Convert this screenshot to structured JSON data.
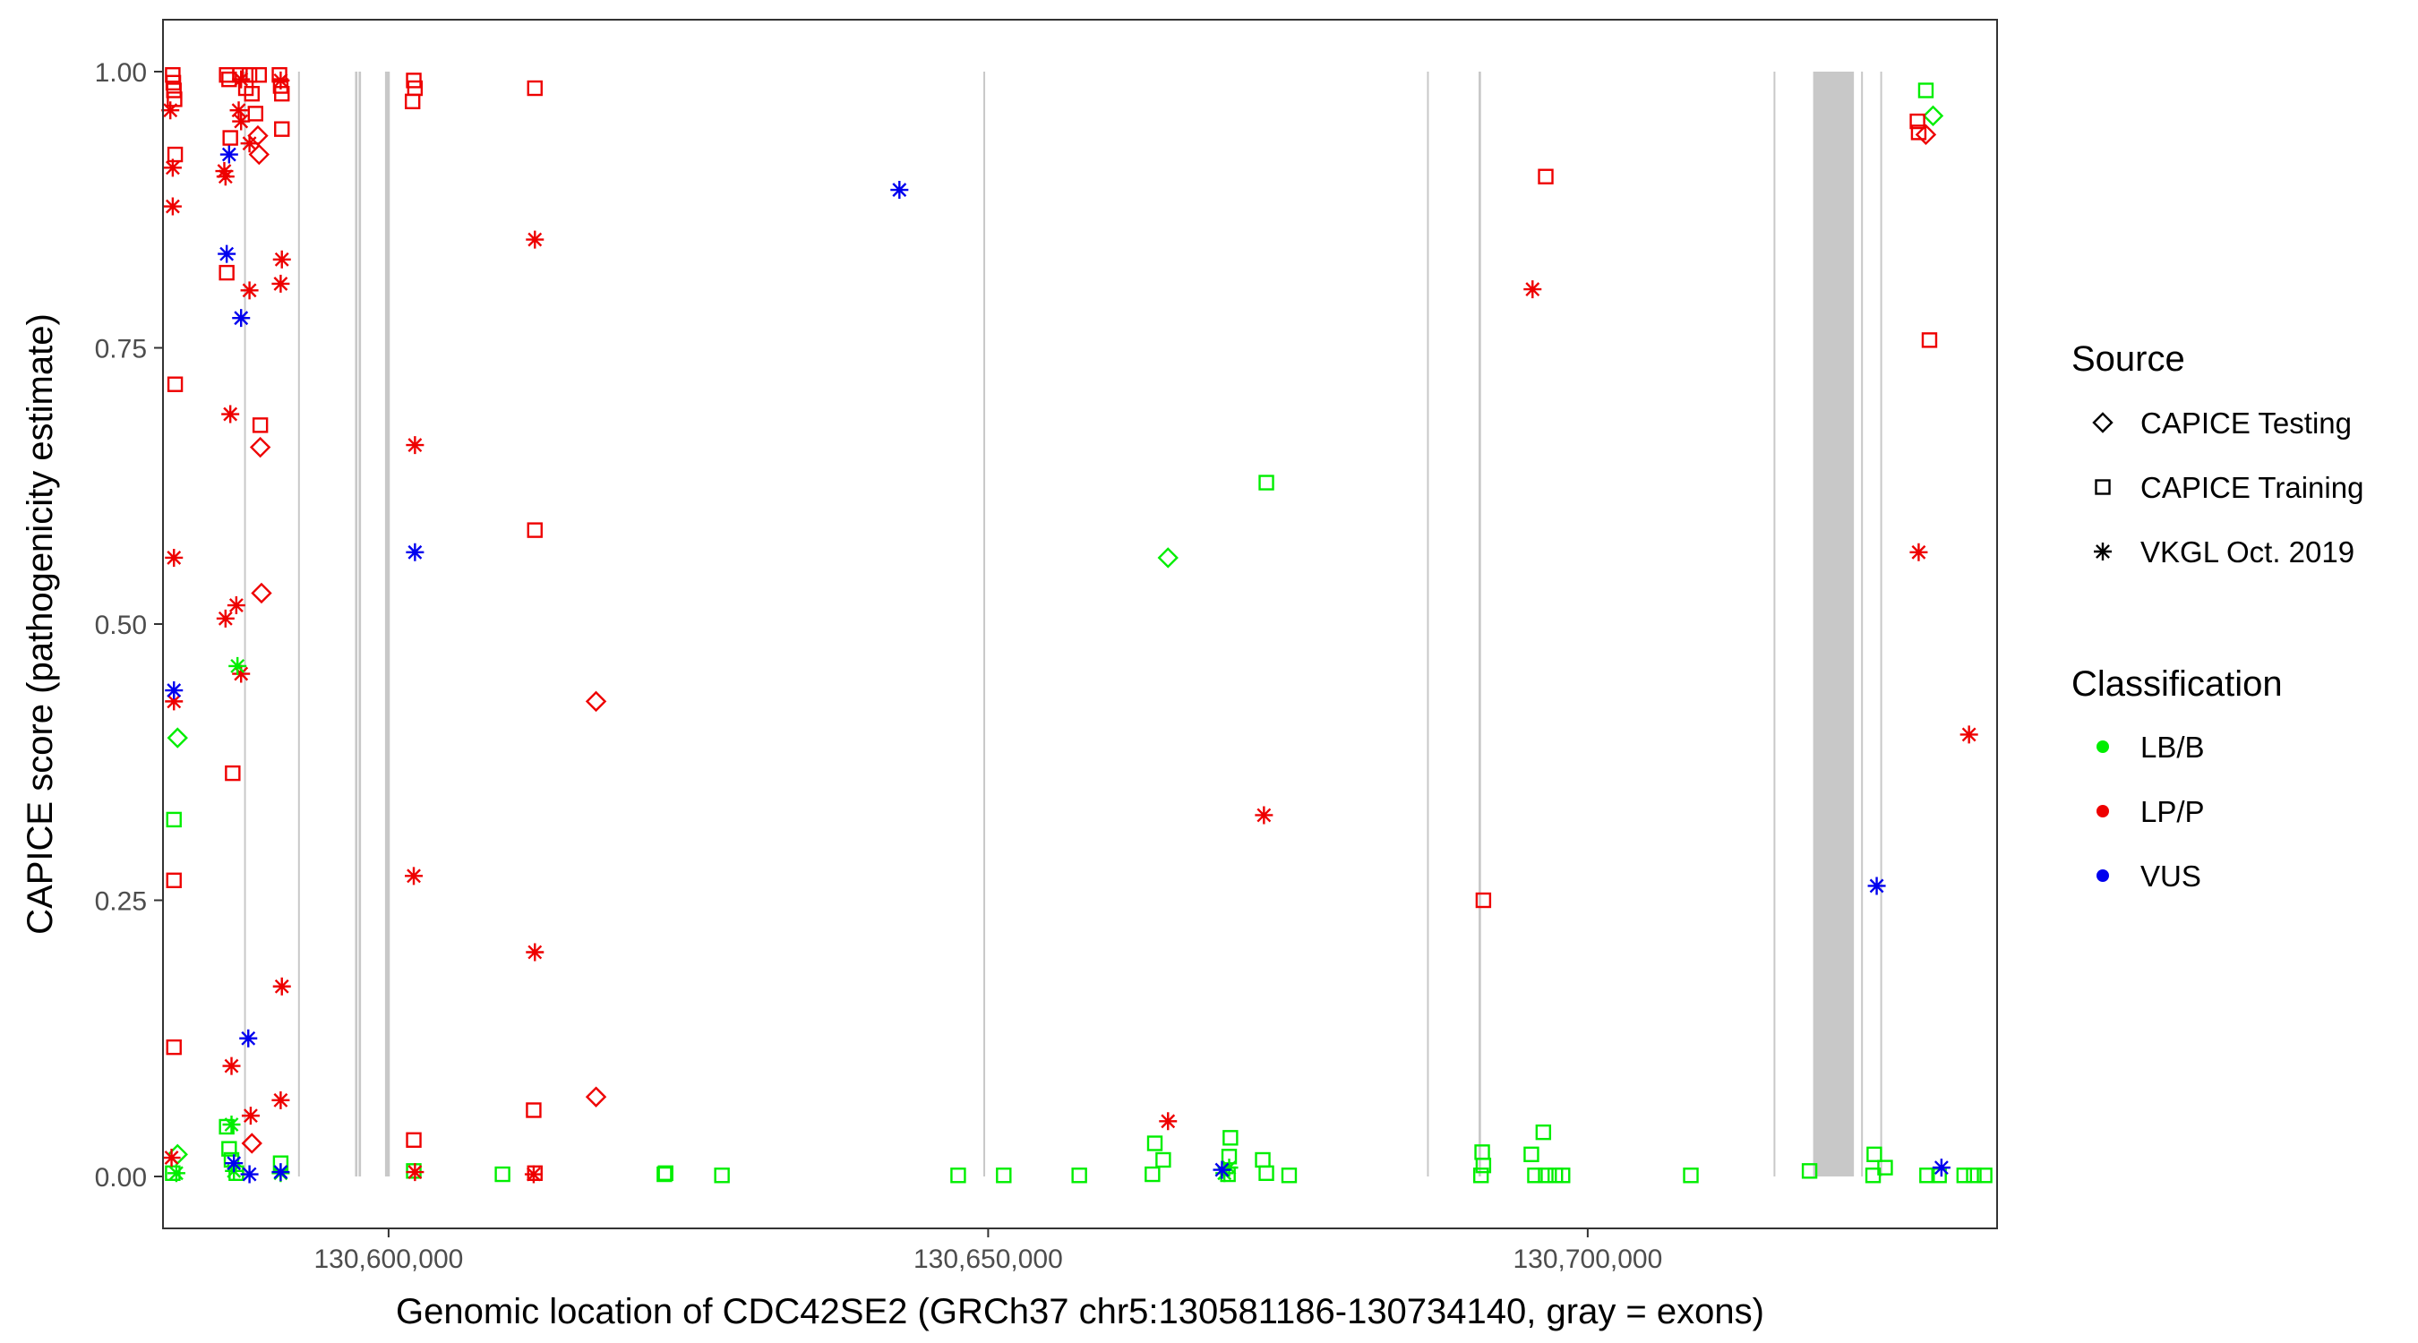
{
  "chart_data": {
    "type": "scatter",
    "title": "",
    "xlabel": "Genomic location of CDC42SE2 (GRCh37 chr5:130581186-130734140, gray = exons)",
    "ylabel": "CAPICE score (pathogenicity estimate)",
    "xlim": [
      130581186,
      130734140
    ],
    "ylim": [
      -0.047,
      1.047
    ],
    "x_ticks": [
      {
        "value": 130600000,
        "label": "130,600,000"
      },
      {
        "value": 130650000,
        "label": "130,650,000"
      },
      {
        "value": 130700000,
        "label": "130,700,000"
      }
    ],
    "y_ticks": [
      {
        "value": 0.0,
        "label": "0.00"
      },
      {
        "value": 0.25,
        "label": "0.25"
      },
      {
        "value": 0.5,
        "label": "0.50"
      },
      {
        "value": 0.75,
        "label": "0.75"
      },
      {
        "value": 1.0,
        "label": "1.00"
      }
    ],
    "grid": false,
    "exons": [
      [
        130587950,
        130588050
      ],
      [
        130592450,
        130592550
      ],
      [
        130597200,
        130597400
      ],
      [
        130597500,
        130597700
      ],
      [
        130599700,
        130600100
      ],
      [
        130649600,
        130649700
      ],
      [
        130686600,
        130686700
      ],
      [
        130690900,
        130691100
      ],
      [
        130715500,
        130715600
      ],
      [
        130718800,
        130722200
      ],
      [
        130722800,
        130722900
      ],
      [
        130724400,
        130724500
      ]
    ],
    "legend": {
      "placement": "right",
      "source_title": "Source",
      "source_items": [
        {
          "label": "CAPICE Testing",
          "shape": "diamond"
        },
        {
          "label": "CAPICE Training",
          "shape": "square"
        },
        {
          "label": "VKGL Oct. 2019",
          "shape": "asterisk"
        }
      ],
      "class_title": "Classification",
      "class_items": [
        {
          "label": "LB/B",
          "color": "#00ee00"
        },
        {
          "label": "LP/P",
          "color": "#ee0000"
        },
        {
          "label": "VUS",
          "color": "#0000ee"
        }
      ]
    },
    "colors": {
      "LB/B": "#00ee00",
      "LP/P": "#ee0000",
      "VUS": "#0000ee",
      "exon": "#c8c8c8"
    },
    "series": [
      {
        "name": "CAPICE Testing",
        "points": [
          [
            130589100,
            0.942,
            "LP/P"
          ],
          [
            130589200,
            0.925,
            "LP/P"
          ],
          [
            130589300,
            0.66,
            "LP/P"
          ],
          [
            130589400,
            0.528,
            "LP/P"
          ],
          [
            130588600,
            0.03,
            "LP/P"
          ],
          [
            130617300,
            0.43,
            "LP/P"
          ],
          [
            130617300,
            0.072,
            "LP/P"
          ],
          [
            130728200,
            0.943,
            "LP/P"
          ],
          [
            130582400,
            0.397,
            "LB/B"
          ],
          [
            130582400,
            0.02,
            "LB/B"
          ],
          [
            130665000,
            0.56,
            "LB/B"
          ],
          [
            130728800,
            0.96,
            "LB/B"
          ]
        ]
      },
      {
        "name": "CAPICE Training",
        "points": [
          [
            130582000,
            0.997,
            "LP/P"
          ],
          [
            130582050,
            0.99,
            "LP/P"
          ],
          [
            130582100,
            0.983,
            "LP/P"
          ],
          [
            130582150,
            0.975,
            "LP/P"
          ],
          [
            130582200,
            0.925,
            "LP/P"
          ],
          [
            130582200,
            0.717,
            "LP/P"
          ],
          [
            130582100,
            0.268,
            "LP/P"
          ],
          [
            130582100,
            0.117,
            "LP/P"
          ],
          [
            130586500,
            0.997,
            "LP/P"
          ],
          [
            130586700,
            0.993,
            "LP/P"
          ],
          [
            130586800,
            0.94,
            "LP/P"
          ],
          [
            130586500,
            0.818,
            "LP/P"
          ],
          [
            130587000,
            0.365,
            "LP/P"
          ],
          [
            130587600,
            0.997,
            "LP/P"
          ],
          [
            130588100,
            0.985,
            "LP/P"
          ],
          [
            130588400,
            0.997,
            "LP/P"
          ],
          [
            130588600,
            0.98,
            "LP/P"
          ],
          [
            130588900,
            0.962,
            "LP/P"
          ],
          [
            130589200,
            0.997,
            "LP/P"
          ],
          [
            130589300,
            0.68,
            "LP/P"
          ],
          [
            130590900,
            0.997,
            "LP/P"
          ],
          [
            130591000,
            0.987,
            "LP/P"
          ],
          [
            130591100,
            0.98,
            "LP/P"
          ],
          [
            130591100,
            0.948,
            "LP/P"
          ],
          [
            130602100,
            0.992,
            "LP/P"
          ],
          [
            130602200,
            0.985,
            "LP/P"
          ],
          [
            130602000,
            0.973,
            "LP/P"
          ],
          [
            130602100,
            0.033,
            "LP/P"
          ],
          [
            130612200,
            0.985,
            "LP/P"
          ],
          [
            130612200,
            0.585,
            "LP/P"
          ],
          [
            130612100,
            0.06,
            "LP/P"
          ],
          [
            130612200,
            0.003,
            "LP/P"
          ],
          [
            130691300,
            0.25,
            "LP/P"
          ],
          [
            130696500,
            0.905,
            "LP/P"
          ],
          [
            130727500,
            0.955,
            "LP/P"
          ],
          [
            130727600,
            0.945,
            "LP/P"
          ],
          [
            130728500,
            0.757,
            "LP/P"
          ],
          [
            130582100,
            0.323,
            "LB/B"
          ],
          [
            130582000,
            0.003,
            "LB/B"
          ],
          [
            130586500,
            0.045,
            "LB/B"
          ],
          [
            130586700,
            0.025,
            "LB/B"
          ],
          [
            130586900,
            0.015,
            "LB/B"
          ],
          [
            130587300,
            0.003,
            "LB/B"
          ],
          [
            130591000,
            0.012,
            "LB/B"
          ],
          [
            130602100,
            0.005,
            "LB/B"
          ],
          [
            130609500,
            0.002,
            "LB/B"
          ],
          [
            130623000,
            0.002,
            "LB/B"
          ],
          [
            130623100,
            0.003,
            "LB/B"
          ],
          [
            130627800,
            0.001,
            "LB/B"
          ],
          [
            130647500,
            0.001,
            "LB/B"
          ],
          [
            130651300,
            0.001,
            "LB/B"
          ],
          [
            130657600,
            0.001,
            "LB/B"
          ],
          [
            130663900,
            0.03,
            "LB/B"
          ],
          [
            130664600,
            0.015,
            "LB/B"
          ],
          [
            130663700,
            0.002,
            "LB/B"
          ],
          [
            130670200,
            0.035,
            "LB/B"
          ],
          [
            130670100,
            0.018,
            "LB/B"
          ],
          [
            130670000,
            0.002,
            "LB/B"
          ],
          [
            130673200,
            0.628,
            "LB/B"
          ],
          [
            130672900,
            0.015,
            "LB/B"
          ],
          [
            130673200,
            0.003,
            "LB/B"
          ],
          [
            130675100,
            0.001,
            "LB/B"
          ],
          [
            130691200,
            0.022,
            "LB/B"
          ],
          [
            130691300,
            0.01,
            "LB/B"
          ],
          [
            130691100,
            0.001,
            "LB/B"
          ],
          [
            130695300,
            0.02,
            "LB/B"
          ],
          [
            130696300,
            0.04,
            "LB/B"
          ],
          [
            130695600,
            0.001,
            "LB/B"
          ],
          [
            130696500,
            0.001,
            "LB/B"
          ],
          [
            130697300,
            0.001,
            "LB/B"
          ],
          [
            130697900,
            0.001,
            "LB/B"
          ],
          [
            130708600,
            0.001,
            "LB/B"
          ],
          [
            130718500,
            0.005,
            "LB/B"
          ],
          [
            130723900,
            0.02,
            "LB/B"
          ],
          [
            130723800,
            0.001,
            "LB/B"
          ],
          [
            130724800,
            0.008,
            "LB/B"
          ],
          [
            130728200,
            0.983,
            "LB/B"
          ],
          [
            130728300,
            0.001,
            "LB/B"
          ],
          [
            130729300,
            0.001,
            "LB/B"
          ],
          [
            130731400,
            0.001,
            "LB/B"
          ],
          [
            130732200,
            0.001,
            "LB/B"
          ],
          [
            130733100,
            0.001,
            "LB/B"
          ]
        ]
      },
      {
        "name": "VKGL Oct. 2019",
        "points": [
          [
            130581800,
            0.965,
            "LP/P"
          ],
          [
            130582000,
            0.913,
            "LP/P"
          ],
          [
            130582000,
            0.878,
            "LP/P"
          ],
          [
            130582100,
            0.56,
            "LP/P"
          ],
          [
            130582100,
            0.43,
            "LP/P"
          ],
          [
            130581900,
            0.017,
            "LP/P"
          ],
          [
            130586300,
            0.91,
            "LP/P"
          ],
          [
            130586400,
            0.905,
            "LP/P"
          ],
          [
            130586800,
            0.69,
            "LP/P"
          ],
          [
            130586400,
            0.505,
            "LP/P"
          ],
          [
            130587300,
            0.517,
            "LP/P"
          ],
          [
            130587700,
            0.455,
            "LP/P"
          ],
          [
            130586900,
            0.1,
            "LP/P"
          ],
          [
            130587700,
            0.993,
            "LP/P"
          ],
          [
            130587500,
            0.965,
            "LP/P"
          ],
          [
            130587700,
            0.955,
            "LP/P"
          ],
          [
            130588400,
            0.935,
            "LP/P"
          ],
          [
            130588400,
            0.802,
            "LP/P"
          ],
          [
            130588500,
            0.055,
            "LP/P"
          ],
          [
            130591000,
            0.992,
            "LP/P"
          ],
          [
            130591100,
            0.83,
            "LP/P"
          ],
          [
            130591000,
            0.808,
            "LP/P"
          ],
          [
            130591100,
            0.172,
            "LP/P"
          ],
          [
            130591000,
            0.069,
            "LP/P"
          ],
          [
            130602200,
            0.662,
            "LP/P"
          ],
          [
            130602100,
            0.272,
            "LP/P"
          ],
          [
            130602200,
            0.004,
            "LP/P"
          ],
          [
            130612200,
            0.848,
            "LP/P"
          ],
          [
            130612200,
            0.203,
            "LP/P"
          ],
          [
            130612100,
            0.002,
            "LP/P"
          ],
          [
            130665000,
            0.05,
            "LP/P"
          ],
          [
            130673000,
            0.327,
            "LP/P"
          ],
          [
            130695400,
            0.803,
            "LP/P"
          ],
          [
            130727600,
            0.565,
            "LP/P"
          ],
          [
            130731800,
            0.4,
            "LP/P"
          ],
          [
            130582300,
            0.003,
            "LB/B"
          ],
          [
            130587400,
            0.462,
            "LB/B"
          ],
          [
            130586900,
            0.047,
            "LB/B"
          ],
          [
            130587100,
            0.005,
            "LB/B"
          ],
          [
            130591000,
            0.003,
            "LB/B"
          ],
          [
            130669700,
            0.003,
            "LB/B"
          ],
          [
            130670100,
            0.008,
            "LB/B"
          ],
          [
            130582100,
            0.44,
            "VUS"
          ],
          [
            130586700,
            0.925,
            "VUS"
          ],
          [
            130586500,
            0.835,
            "VUS"
          ],
          [
            130587700,
            0.777,
            "VUS"
          ],
          [
            130588300,
            0.125,
            "VUS"
          ],
          [
            130587100,
            0.012,
            "VUS"
          ],
          [
            130588400,
            0.002,
            "VUS"
          ],
          [
            130591000,
            0.004,
            "VUS"
          ],
          [
            130602200,
            0.565,
            "VUS"
          ],
          [
            130642600,
            0.893,
            "VUS"
          ],
          [
            130669500,
            0.006,
            "VUS"
          ],
          [
            130724100,
            0.263,
            "VUS"
          ],
          [
            130729500,
            0.008,
            "VUS"
          ]
        ]
      }
    ]
  }
}
